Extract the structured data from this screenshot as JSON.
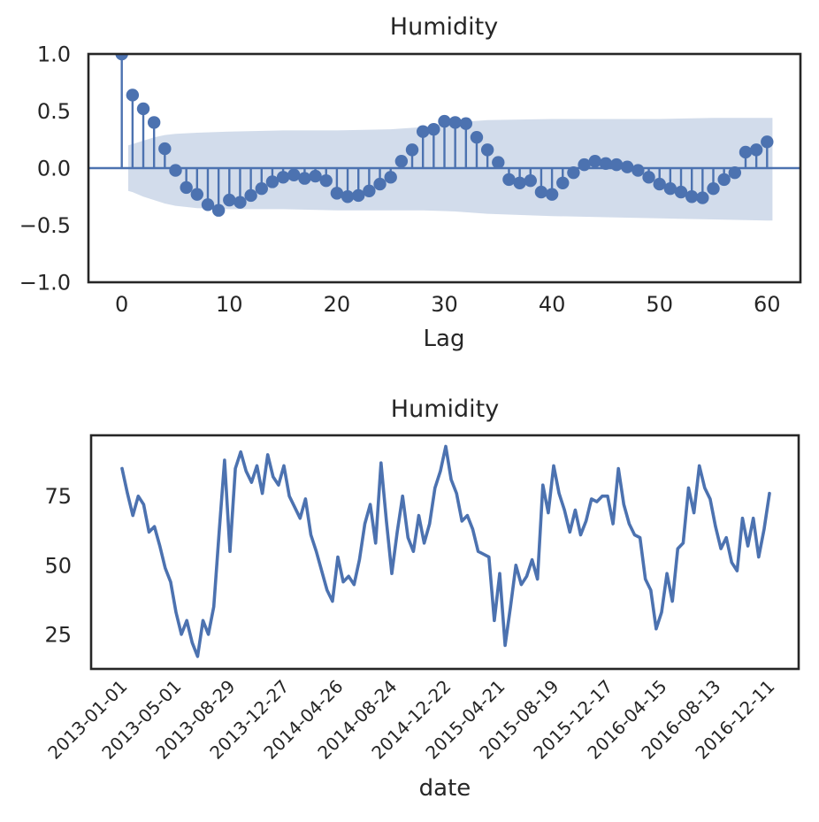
{
  "page": {
    "background": "#ffffff"
  },
  "colors": {
    "series_blue": "#4c72b0",
    "conf_band_fill": "#4c72b0",
    "conf_band_opacity": 0.25,
    "axes_frame": "#262626",
    "text": "#262626"
  },
  "chart_data": [
    {
      "type": "stem",
      "title": "Humidity",
      "xlabel": "Lag",
      "ylabel": "",
      "xlim": [
        -3.1,
        63.1
      ],
      "ylim": [
        -1,
        1
      ],
      "grid": false,
      "legend": "none",
      "xticks": [
        0,
        10,
        20,
        30,
        40,
        50,
        60
      ],
      "xtick_labels": [
        "0",
        "10",
        "20",
        "30",
        "40",
        "50",
        "60"
      ],
      "yticks": [
        1.0,
        0.5,
        0.0,
        -0.5,
        -1.0
      ],
      "ytick_labels": [
        "1.0",
        "0.5",
        "0.0",
        "−0.5",
        "−1.0"
      ],
      "lags": [
        0,
        1,
        2,
        3,
        4,
        5,
        6,
        7,
        8,
        9,
        10,
        11,
        12,
        13,
        14,
        15,
        16,
        17,
        18,
        19,
        20,
        21,
        22,
        23,
        24,
        25,
        26,
        27,
        28,
        29,
        30,
        31,
        32,
        33,
        34,
        35,
        36,
        37,
        38,
        39,
        40,
        41,
        42,
        43,
        44,
        45,
        46,
        47,
        48,
        49,
        50,
        51,
        52,
        53,
        54,
        55,
        56,
        57,
        58,
        59,
        60
      ],
      "values": [
        1.0,
        0.64,
        0.52,
        0.4,
        0.17,
        -0.02,
        -0.17,
        -0.23,
        -0.32,
        -0.37,
        -0.28,
        -0.3,
        -0.24,
        -0.18,
        -0.12,
        -0.08,
        -0.06,
        -0.09,
        -0.07,
        -0.11,
        -0.22,
        -0.25,
        -0.24,
        -0.2,
        -0.14,
        -0.08,
        0.06,
        0.16,
        0.32,
        0.34,
        0.41,
        0.4,
        0.39,
        0.27,
        0.16,
        0.05,
        -0.1,
        -0.13,
        -0.11,
        -0.21,
        -0.23,
        -0.13,
        -0.04,
        0.03,
        0.06,
        0.04,
        0.03,
        0.01,
        -0.02,
        -0.08,
        -0.14,
        -0.18,
        -0.21,
        -0.25,
        -0.26,
        -0.18,
        -0.1,
        -0.04,
        0.14,
        0.16,
        0.23
      ],
      "conf_band": {
        "lags": [
          0.6,
          1,
          2,
          3,
          4,
          5,
          7,
          10,
          15,
          20,
          25,
          28,
          31,
          34,
          40,
          45,
          50,
          55,
          60,
          60.5
        ],
        "upper": [
          0.2,
          0.21,
          0.24,
          0.27,
          0.29,
          0.3,
          0.31,
          0.32,
          0.33,
          0.33,
          0.34,
          0.36,
          0.4,
          0.42,
          0.43,
          0.43,
          0.43,
          0.44,
          0.44,
          0.44
        ],
        "lower": [
          -0.2,
          -0.21,
          -0.25,
          -0.28,
          -0.31,
          -0.33,
          -0.35,
          -0.36,
          -0.36,
          -0.37,
          -0.37,
          -0.37,
          -0.38,
          -0.4,
          -0.42,
          -0.43,
          -0.44,
          -0.45,
          -0.46,
          -0.46
        ]
      }
    },
    {
      "type": "line",
      "title": "Humidity",
      "xlabel": "date",
      "ylabel": "",
      "ylim": [
        12.5,
        97
      ],
      "grid": false,
      "legend": "none",
      "yticks": [
        75,
        50,
        25
      ],
      "ytick_labels": [
        "75",
        "50",
        "25"
      ],
      "xtick_labels": [
        "2013-01-01",
        "2013-05-01",
        "2013-08-29",
        "2013-12-27",
        "2014-04-26",
        "2014-08-24",
        "2014-12-22",
        "2015-04-21",
        "2015-08-19",
        "2015-12-17",
        "2016-04-15",
        "2016-08-13",
        "2016-12-11"
      ],
      "xtick_every_n_points": 10,
      "values": [
        85,
        76,
        68,
        75,
        72,
        62,
        64,
        57,
        49,
        44,
        33,
        25,
        30,
        22,
        17,
        30,
        25,
        35,
        62,
        88,
        55,
        85,
        91,
        84,
        80,
        86,
        76,
        90,
        82,
        79,
        86,
        75,
        71,
        67,
        74,
        61,
        55,
        48,
        41,
        37,
        53,
        44,
        46,
        43,
        52,
        65,
        72,
        58,
        87,
        66,
        47,
        62,
        75,
        60,
        55,
        68,
        58,
        65,
        78,
        84,
        93,
        81,
        76,
        66,
        68,
        63,
        55,
        54,
        53,
        30,
        47,
        21,
        35,
        50,
        43,
        46,
        52,
        45,
        79,
        69,
        86,
        76,
        70,
        62,
        70,
        61,
        66,
        74,
        73,
        75,
        75,
        65,
        85,
        72,
        65,
        61,
        60,
        45,
        41,
        27,
        33,
        47,
        37,
        56,
        58,
        78,
        69,
        86,
        78,
        74,
        64,
        56,
        60,
        51,
        48,
        67,
        57,
        67,
        53,
        63,
        76
      ]
    }
  ]
}
